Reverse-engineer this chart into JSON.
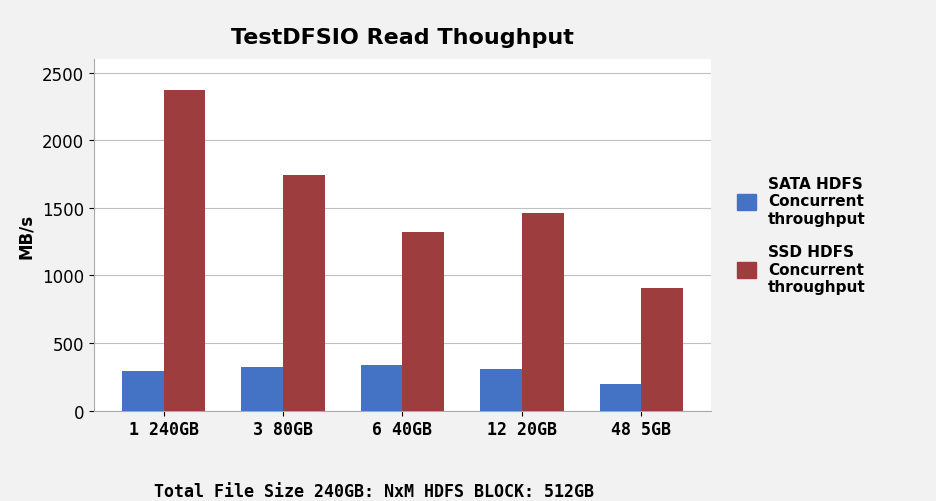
{
  "title": "TestDFSIO Read Thoughput",
  "xlabel": "Total File Size 240GB: NxM HDFS BLOCK: 512GB",
  "ylabel": "MB/s",
  "categories": [
    "1 240GB",
    "3 80GB",
    "6 40GB",
    "12 20GB",
    "48 5GB"
  ],
  "sata_values": [
    290,
    320,
    340,
    305,
    195
  ],
  "ssd_values": [
    2370,
    1740,
    1320,
    1460,
    910
  ],
  "sata_color": "#4472C4",
  "ssd_color": "#9E3D3D",
  "ylim": [
    0,
    2600
  ],
  "yticks": [
    0,
    500,
    1000,
    1500,
    2000,
    2500
  ],
  "legend_sata": "SATA HDFS\nConcurrent\nthroughput",
  "legend_ssd": "SSD HDFS\nConcurrent\nthroughput",
  "bar_width": 0.35,
  "title_fontsize": 16,
  "label_fontsize": 12,
  "tick_fontsize": 12,
  "legend_fontsize": 11,
  "xlabel_fontsize": 12,
  "background_color": "#F2F2F2",
  "plot_bg_color": "#FFFFFF",
  "grid_color": "#C0C0C0",
  "border_color": "#AAAAAA"
}
